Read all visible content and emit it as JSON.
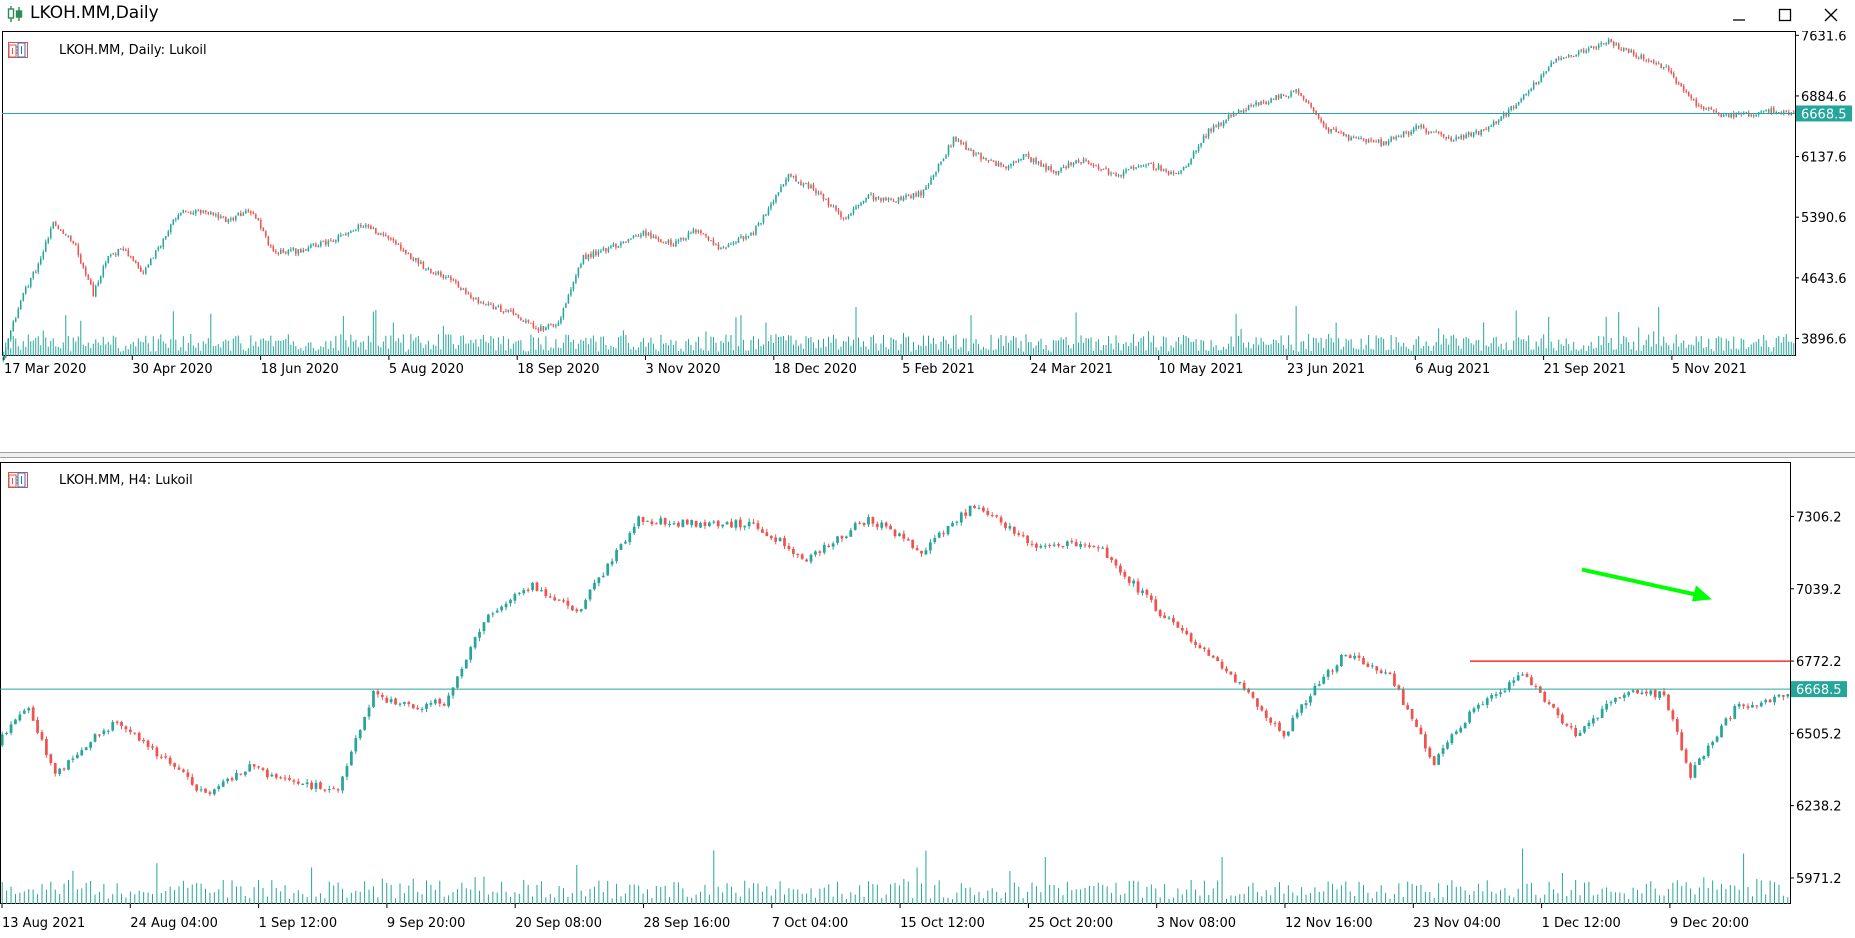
{
  "window": {
    "title": "LKOH.MM,Daily",
    "icon": "candlestick-chart-icon",
    "controls": [
      "minimize-icon",
      "maximize-icon",
      "close-icon"
    ]
  },
  "colors": {
    "bull": "#26a69a",
    "bear": "#ef5350",
    "volume": "#26a69a",
    "hline": "#26a69a",
    "resistance": "#ff0000",
    "arrow": "#00ff00",
    "price_tag_bg": "#26a69a"
  },
  "chart_data": [
    {
      "type": "candlestick",
      "header": {
        "symbol": "LKOH.MM, Daily:",
        "name": "Lukoil"
      },
      "y_ticks": [
        "7631.6",
        "6884.6",
        "6137.6",
        "5390.6",
        "4643.6",
        "3896.6"
      ],
      "y_tick_values": [
        7631.6,
        6884.6,
        6137.6,
        5390.6,
        4643.6,
        3896.6
      ],
      "ylim": [
        3680,
        7660
      ],
      "x_ticks": [
        "17 Mar 2020",
        "30 Apr 2020",
        "18 Jun 2020",
        "5 Aug 2020",
        "18 Sep 2020",
        "3 Nov 2020",
        "18 Dec 2020",
        "5 Feb 2021",
        "24 Mar 2021",
        "10 May 2021",
        "23 Jun 2021",
        "6 Aug 2021",
        "21 Sep 2021",
        "5 Nov 2021"
      ],
      "current_price": "6668.5",
      "current_price_value": 6668.5,
      "anchors": [
        [
          0,
          3700
        ],
        [
          8,
          4450
        ],
        [
          14,
          4800
        ],
        [
          20,
          5300
        ],
        [
          28,
          5100
        ],
        [
          36,
          4450
        ],
        [
          42,
          4900
        ],
        [
          48,
          5000
        ],
        [
          56,
          4700
        ],
        [
          62,
          5000
        ],
        [
          70,
          5450
        ],
        [
          80,
          5450
        ],
        [
          90,
          5350
        ],
        [
          96,
          5450
        ],
        [
          100,
          5450
        ],
        [
          108,
          4950
        ],
        [
          118,
          4980
        ],
        [
          132,
          5100
        ],
        [
          144,
          5300
        ],
        [
          156,
          5100
        ],
        [
          168,
          4780
        ],
        [
          178,
          4650
        ],
        [
          190,
          4350
        ],
        [
          204,
          4200
        ],
        [
          214,
          4000
        ],
        [
          222,
          4080
        ],
        [
          232,
          4900
        ],
        [
          242,
          5000
        ],
        [
          256,
          5200
        ],
        [
          268,
          5050
        ],
        [
          278,
          5250
        ],
        [
          286,
          5000
        ],
        [
          300,
          5200
        ],
        [
          314,
          5900
        ],
        [
          326,
          5700
        ],
        [
          336,
          5350
        ],
        [
          346,
          5650
        ],
        [
          356,
          5600
        ],
        [
          368,
          5700
        ],
        [
          380,
          6350
        ],
        [
          390,
          6150
        ],
        [
          400,
          6000
        ],
        [
          408,
          6150
        ],
        [
          420,
          5950
        ],
        [
          432,
          6100
        ],
        [
          444,
          5900
        ],
        [
          458,
          6050
        ],
        [
          470,
          5900
        ],
        [
          482,
          6450
        ],
        [
          494,
          6700
        ],
        [
          508,
          6850
        ],
        [
          518,
          6950
        ],
        [
          528,
          6500
        ],
        [
          540,
          6350
        ],
        [
          552,
          6300
        ],
        [
          566,
          6500
        ],
        [
          578,
          6350
        ],
        [
          592,
          6450
        ],
        [
          606,
          6800
        ],
        [
          620,
          7300
        ],
        [
          632,
          7450
        ],
        [
          642,
          7550
        ],
        [
          652,
          7400
        ],
        [
          664,
          7250
        ],
        [
          676,
          6800
        ],
        [
          686,
          6650
        ],
        [
          696,
          6650
        ],
        [
          708,
          6700
        ],
        [
          716,
          6670
        ]
      ]
    },
    {
      "type": "candlestick",
      "header": {
        "symbol": "LKOH.MM, H4:",
        "name": "Lukoil"
      },
      "y_ticks": [
        "7306.2",
        "7039.2",
        "6772.2",
        "6505.2",
        "6238.2",
        "5971.2"
      ],
      "y_tick_values": [
        7306.2,
        7039.2,
        6772.2,
        6505.2,
        6238.2,
        5971.2
      ],
      "ylim": [
        5875,
        7500
      ],
      "x_ticks": [
        "13 Aug 2021",
        "24 Aug 04:00",
        "1 Sep 12:00",
        "9 Sep 20:00",
        "20 Sep 08:00",
        "28 Sep 16:00",
        "7 Oct 04:00",
        "15 Oct 12:00",
        "25 Oct 20:00",
        "3 Nov 08:00",
        "12 Nov 16:00",
        "23 Nov 04:00",
        "1 Dec 12:00",
        "9 Dec 20:00"
      ],
      "current_price": "6668.5",
      "current_price_value": 6668.5,
      "resistance_level": 6772,
      "arrow": {
        "from": [
          252,
          7110
        ],
        "to": [
          272,
          7000
        ]
      },
      "anchors": [
        [
          0,
          6500
        ],
        [
          6,
          6600
        ],
        [
          12,
          6350
        ],
        [
          18,
          6450
        ],
        [
          26,
          6550
        ],
        [
          36,
          6420
        ],
        [
          46,
          6280
        ],
        [
          56,
          6380
        ],
        [
          66,
          6320
        ],
        [
          76,
          6300
        ],
        [
          84,
          6650
        ],
        [
          92,
          6600
        ],
        [
          100,
          6620
        ],
        [
          110,
          6950
        ],
        [
          120,
          7050
        ],
        [
          130,
          6950
        ],
        [
          144,
          7300
        ],
        [
          152,
          7280
        ],
        [
          170,
          7280
        ],
        [
          182,
          7150
        ],
        [
          196,
          7300
        ],
        [
          208,
          7180
        ],
        [
          220,
          7350
        ],
        [
          234,
          7200
        ],
        [
          248,
          7200
        ],
        [
          262,
          6950
        ],
        [
          278,
          6720
        ],
        [
          290,
          6500
        ],
        [
          296,
          6650
        ],
        [
          304,
          6800
        ],
        [
          314,
          6720
        ],
        [
          324,
          6400
        ],
        [
          332,
          6580
        ],
        [
          344,
          6720
        ],
        [
          356,
          6500
        ],
        [
          366,
          6650
        ],
        [
          376,
          6650
        ],
        [
          382,
          6350
        ],
        [
          392,
          6600
        ],
        [
          404,
          6650
        ]
      ]
    }
  ]
}
